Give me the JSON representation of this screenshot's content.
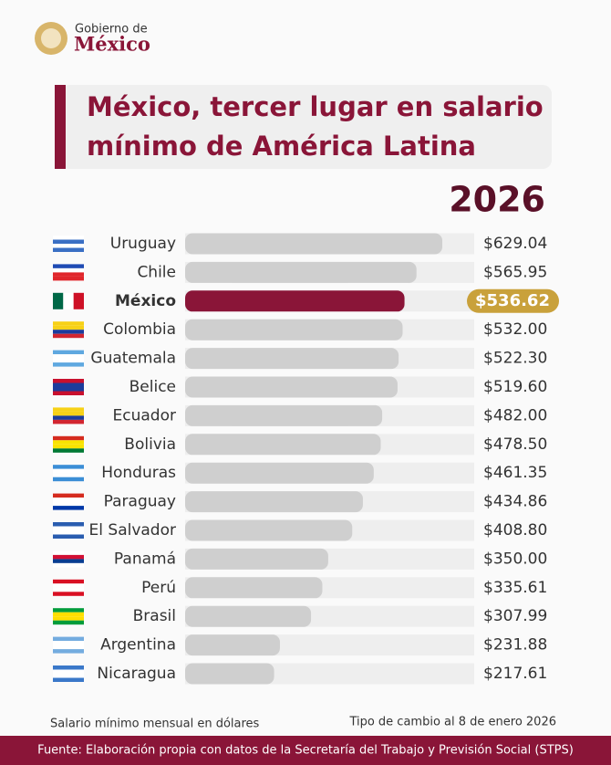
{
  "header": {
    "org_line1": "Gobierno de",
    "org_line2": "México"
  },
  "chart_data": {
    "type": "hbar",
    "title_line1": "México, tercer lugar en salario",
    "title_line2": "mínimo de América Latina",
    "subtitle": "2026",
    "categories": [
      "Uruguay",
      "Chile",
      "México",
      "Colombia",
      "Guatemala",
      "Belice",
      "Ecuador",
      "Bolivia",
      "Honduras",
      "Paraguay",
      "El Salvador",
      "Panamá",
      "Perú",
      "Brasil",
      "Argentina",
      "Nicaragua"
    ],
    "values": [
      629.04,
      565.95,
      536.62,
      532.0,
      522.3,
      519.6,
      482.0,
      478.5,
      461.35,
      434.86,
      408.8,
      350.0,
      335.61,
      307.99,
      231.88,
      217.61
    ],
    "value_labels": [
      "$629.04",
      "$565.95",
      "$536.62",
      "$532.00",
      "$522.30",
      "$519.60",
      "$482.00",
      "$478.50",
      "$461.35",
      "$434.86",
      "$408.80",
      "$350.00",
      "$335.61",
      "$307.99",
      "$231.88",
      "$217.61"
    ],
    "colors": [
      "#cfcfcf",
      "#cfcfcf",
      "#8a1538",
      "#cfcfcf",
      "#cfcfcf",
      "#cfcfcf",
      "#cfcfcf",
      "#cfcfcf",
      "#cfcfcf",
      "#cfcfcf",
      "#cfcfcf",
      "#cfcfcf",
      "#cfcfcf",
      "#cfcfcf",
      "#cfcfcf",
      "#cfcfcf"
    ],
    "label_backgrounds": [
      null,
      null,
      "#c9a13b",
      null,
      null,
      null,
      null,
      null,
      null,
      null,
      null,
      null,
      null,
      null,
      null,
      null
    ],
    "note_left": "Salario mínimo mensual en dólares",
    "note_right": "Tipo de cambio al 8 de enero 2026",
    "source": "Fuente: Elaboración propia con datos de la Secretaría del Trabajo y Previsión Social (STPS)"
  }
}
